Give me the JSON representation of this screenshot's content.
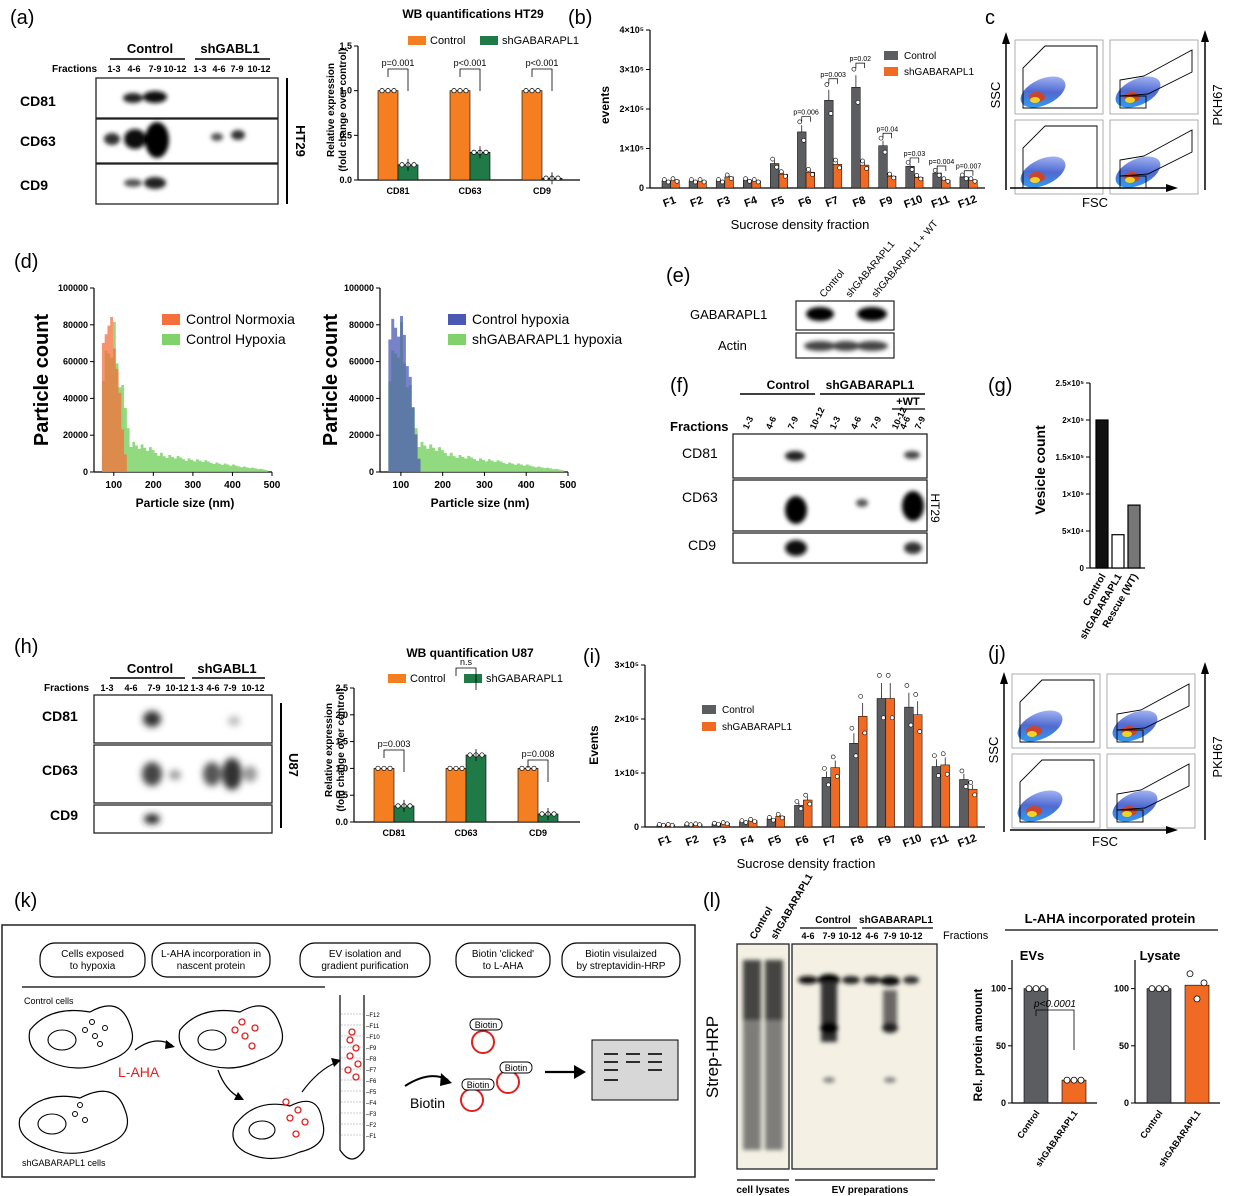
{
  "panel_labels": {
    "a": "(a)",
    "b": "(b)",
    "c": "c",
    "d": "(d)",
    "e": "(e)",
    "f": "(f)",
    "g": "(g)",
    "h": "(h)",
    "i": "(i)",
    "j": "(j)",
    "k": "(k)",
    "l": "(l)"
  },
  "panel_a": {
    "blot": {
      "groups": [
        "Control",
        "shGABL1"
      ],
      "fractions_label": "Fractions",
      "fractions": [
        "1-3",
        "4-6",
        "7-9",
        "10-12",
        "1-3",
        "4-6",
        "7-9",
        "10-12"
      ],
      "rows": [
        "CD81",
        "CD63",
        "CD9"
      ],
      "cell_line": "HT29"
    },
    "chart": {
      "title": "WB quantifications HT29",
      "ylabel": "Relative expression (fold change over control)",
      "ylabel_line1": "Relative expression",
      "ylabel_line2": "(fold change over control)",
      "yticks": [
        "0.0",
        "0.5",
        "1.0",
        "1.5"
      ],
      "legend": [
        "Control",
        "shGABARAPL1"
      ],
      "pvalues": [
        "p=0.001",
        "p<0.001",
        "p<0.001"
      ]
    }
  },
  "panel_b": {
    "ylabel": "events",
    "xlabel": "Sucrose density fraction",
    "yticks": [
      "0",
      "1×10⁵",
      "2×10⁵",
      "3×10⁵",
      "4×10⁵"
    ],
    "legend": [
      "Control",
      "shGABARAPL1"
    ],
    "pvalues": [
      "p=0.006",
      "p=0.003",
      "p=0.02",
      "p=0.04",
      "p=0.03",
      "p=0.004",
      "p=0.007"
    ]
  },
  "panel_c": {
    "ssc": "SSC",
    "fsc": "FSC",
    "pkh": "PKH67"
  },
  "panel_d": {
    "ylabel": "Particle count",
    "xlabel": "Particle size (nm)",
    "yticks": [
      "0",
      "20000",
      "40000",
      "60000",
      "80000",
      "100000"
    ],
    "xticks": [
      "100",
      "200",
      "300",
      "400",
      "500"
    ],
    "legend_left": [
      "Control Normoxia",
      "Control Hypoxia"
    ],
    "legend_right": [
      "Control hypoxia",
      "shGABARAPL1 hypoxia"
    ]
  },
  "panel_e": {
    "lanes": [
      "Control",
      "shGABARAPL1",
      "shGABARAPL1 + WT"
    ],
    "rows": [
      "GABARAPL1",
      "Actin"
    ]
  },
  "panel_f": {
    "groups": [
      "Control",
      "shGABARAPL1",
      "+WT"
    ],
    "fractions_label": "Fractions",
    "fractions": [
      "1-3",
      "4-6",
      "7-9",
      "10-12",
      "1-3",
      "4-6",
      "7-9",
      "10-12",
      "4-6",
      "7-9"
    ],
    "rows": [
      "CD81",
      "CD63",
      "CD9"
    ],
    "cell_line": "HT29"
  },
  "panel_g": {
    "ylabel": "Vesicle count",
    "yticks": [
      "0",
      "5×10⁴",
      "1×10⁵",
      "1.5×10⁵",
      "2×10⁵",
      "2.5×10⁵"
    ],
    "categories": [
      "Control",
      "shGABARAPL1",
      "Rescue (WT)"
    ]
  },
  "panel_h": {
    "blot": {
      "groups": [
        "Control",
        "shGABL1"
      ],
      "fractions_label": "Fractions",
      "fractions": [
        "1-3",
        "4-6",
        "7-9",
        "10-12",
        "1-3",
        "4-6",
        "7-9",
        "10-12"
      ],
      "rows": [
        "CD81",
        "CD63",
        "CD9"
      ],
      "cell_line": "U87"
    },
    "chart": {
      "title": "WB quantification U87",
      "ylabel_line1": "Relative expression",
      "ylabel_line2": "(fold change over control)",
      "yticks": [
        "0.0",
        "0.5",
        "1.0",
        "1.5",
        "2.0",
        "2.5"
      ],
      "legend": [
        "Control",
        "shGABARAPL1"
      ],
      "pvalues": [
        "p=0.003",
        "n.s",
        "p=0.008"
      ]
    }
  },
  "panel_i": {
    "ylabel": "Events",
    "xlabel": "Sucrose density fraction",
    "yticks": [
      "0",
      "1×10⁵",
      "2×10⁵",
      "3×10⁵"
    ],
    "legend": [
      "Control",
      "shGABARAPL1"
    ]
  },
  "panel_j": {
    "ssc": "SSC",
    "fsc": "FSC",
    "pkh": "PKH67"
  },
  "panel_k": {
    "steps": [
      "Cells exposed to hypoxia",
      "L-AHA incorporation in nascent protein",
      "EV isolation and gradient purification",
      "Biotin 'clicked' to L-AHA",
      "Biotin visulaized by streptavidin-HRP"
    ],
    "control_cells": "Control cells",
    "sh_cells": "shGABARAPL1 cells",
    "laha": "L-AHA",
    "biotin": "Biotin",
    "tube_fractions": [
      "F12",
      "F11",
      "F10",
      "F9",
      "F8",
      "F7",
      "F6",
      "F5",
      "F4",
      "F3",
      "F2",
      "F1"
    ]
  },
  "panel_l": {
    "lysate_lanes": [
      "Control",
      "shGABARAPL1"
    ],
    "ev_groups": [
      "Control",
      "shGABARAPL1"
    ],
    "ev_fractions": [
      "4-6",
      "7-9",
      "10-12",
      "4-6",
      "7-9",
      "10-12"
    ],
    "fractions_label": "Fractions",
    "ylabel_blot": "Strep-HRP",
    "bottom_labels": [
      "cell lysates",
      "EV preparations"
    ],
    "title": "L-AHA incorporated protein",
    "ev_title": "EVs",
    "lysate_title": "Lysate",
    "ylabel": "Rel. protein amount",
    "yticks": [
      "0",
      "50",
      "100"
    ],
    "pvalue": "p<0.0001",
    "categories": [
      "Control",
      "shGABARAPL1"
    ]
  },
  "colors": {
    "control": "#f57f20",
    "sh": "#1f7a48",
    "grey": "#5b5d60",
    "orange": "#f06a24",
    "green_hist": "#7fd36a",
    "blue_hist": "#4b59b4",
    "orange_hist": "#f5703c"
  },
  "chart_data": [
    {
      "id": "a-quant",
      "type": "bar",
      "categories": [
        "CD81",
        "CD63",
        "CD9"
      ],
      "series": [
        {
          "name": "Control",
          "values": [
            1.0,
            1.0,
            1.0
          ]
        },
        {
          "name": "shGABARAPL1",
          "values": [
            0.17,
            0.31,
            0.02
          ]
        }
      ],
      "title": "WB quantifications HT29",
      "ylim": [
        0,
        1.5
      ]
    },
    {
      "id": "b-events",
      "type": "bar",
      "categories": [
        "F1",
        "F2",
        "F3",
        "F4",
        "F5",
        "F6",
        "F7",
        "F8",
        "F9",
        "F10",
        "F11",
        "F12"
      ],
      "series": [
        {
          "name": "Control",
          "values": [
            18000,
            18000,
            18000,
            20000,
            62000,
            142000,
            222000,
            255000,
            107000,
            55000,
            38000,
            28000
          ]
        },
        {
          "name": "shGABARAPL1",
          "values": [
            20000,
            18000,
            28000,
            18000,
            35000,
            40000,
            60000,
            58000,
            30000,
            27000,
            20000,
            20000
          ]
        }
      ],
      "ylim": [
        0,
        400000
      ]
    },
    {
      "id": "d-left",
      "type": "area",
      "title": "",
      "series": [
        {
          "name": "Control Normoxia"
        },
        {
          "name": "Control Hypoxia"
        }
      ],
      "ylim": [
        0,
        100000
      ],
      "xlim": [
        50,
        500
      ]
    },
    {
      "id": "d-right",
      "type": "area",
      "title": "",
      "series": [
        {
          "name": "Control hypoxia"
        },
        {
          "name": "shGABARAPL1 hypoxia"
        }
      ],
      "ylim": [
        0,
        100000
      ],
      "xlim": [
        50,
        500
      ]
    },
    {
      "id": "g-vesicle",
      "type": "bar",
      "categories": [
        "Control",
        "shGABARAPL1",
        "Rescue (WT)"
      ],
      "values": [
        200000,
        45000,
        85000
      ],
      "ylim": [
        0,
        250000
      ]
    },
    {
      "id": "h-quant",
      "type": "bar",
      "categories": [
        "CD81",
        "CD63",
        "CD9"
      ],
      "series": [
        {
          "name": "Control",
          "values": [
            1.0,
            1.0,
            1.0
          ]
        },
        {
          "name": "shGABARAPL1",
          "values": [
            0.3,
            1.25,
            0.15
          ]
        }
      ],
      "title": "WB quantification U87",
      "ylim": [
        0,
        2.5
      ]
    },
    {
      "id": "i-events",
      "type": "bar",
      "categories": [
        "F1",
        "F2",
        "F3",
        "F4",
        "F5",
        "F6",
        "F7",
        "F8",
        "F9",
        "F10",
        "F11",
        "F12"
      ],
      "series": [
        {
          "name": "Control",
          "values": [
            4000,
            5000,
            6000,
            10000,
            15000,
            40000,
            92000,
            155000,
            238000,
            222000,
            112000,
            88000
          ]
        },
        {
          "name": "shGABARAPL1",
          "values": [
            4000,
            5000,
            7000,
            12000,
            20000,
            50000,
            110000,
            205000,
            238000,
            208000,
            115000,
            70000
          ]
        }
      ],
      "ylim": [
        0,
        300000
      ]
    },
    {
      "id": "l-ev",
      "type": "bar",
      "categories": [
        "Control",
        "shGABARAPL1"
      ],
      "values": [
        100,
        20
      ],
      "title": "EVs",
      "ylim": [
        0,
        125
      ]
    },
    {
      "id": "l-lysate",
      "type": "bar",
      "categories": [
        "Control",
        "shGABARAPL1"
      ],
      "values": [
        100,
        103
      ],
      "title": "Lysate",
      "ylim": [
        0,
        125
      ]
    }
  ]
}
